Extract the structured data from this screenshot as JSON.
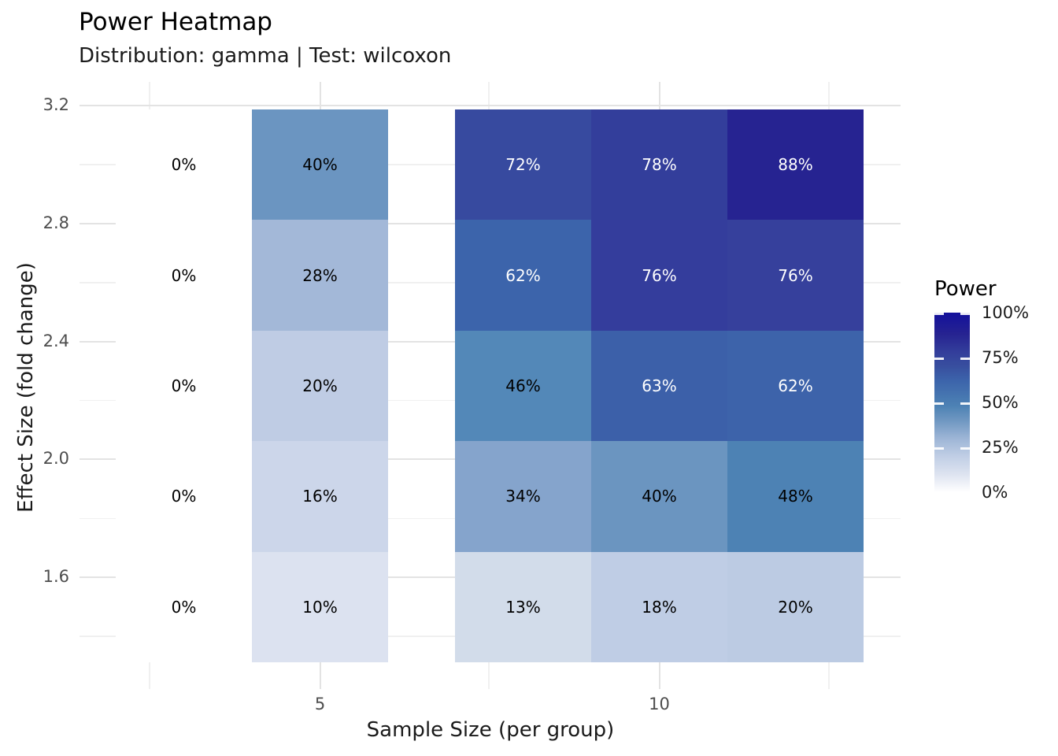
{
  "title": "Power Heatmap",
  "subtitle": "Distribution: gamma | Test: wilcoxon",
  "axes": {
    "x": {
      "title": "Sample Size (per group)",
      "tick_labels": [
        "5",
        "10"
      ]
    },
    "y": {
      "title": "Effect Size (fold change)",
      "tick_labels": [
        "3.2",
        "2.8",
        "2.4",
        "2.0",
        "1.6"
      ]
    }
  },
  "legend": {
    "title": "Power",
    "tick_labels": [
      "100%",
      "75%",
      "50%",
      "25%",
      "0%"
    ],
    "gradient_stops": [
      {
        "pct": 0,
        "color": "#ffffff"
      },
      {
        "pct": 10,
        "color": "#dde3f0"
      },
      {
        "pct": 20,
        "color": "#c0cee5"
      },
      {
        "pct": 30,
        "color": "#9db5d6"
      },
      {
        "pct": 40,
        "color": "#6f97c1"
      },
      {
        "pct": 48,
        "color": "#4d82b4"
      },
      {
        "pct": 62,
        "color": "#3c64ab"
      },
      {
        "pct": 70,
        "color": "#384f9f"
      },
      {
        "pct": 78,
        "color": "#333e9b"
      },
      {
        "pct": 88,
        "color": "#262391"
      },
      {
        "pct": 100,
        "color": "#13109c"
      }
    ]
  },
  "colors": {
    "background": "#ffffff",
    "gridline_major": "#e3e3e3",
    "gridline_minor": "#f0f0f0",
    "tick_label": "#4d4d4d",
    "cell_text_dark": "#000000",
    "cell_text_light": "#ffffff"
  },
  "chart_data": {
    "type": "heatmap",
    "title": "Power Heatmap",
    "subtitle": "Distribution: gamma | Test: wilcoxon",
    "xlabel": "Sample Size (per group)",
    "ylabel": "Effect Size (fold change)",
    "x_tick_labels_shown": [
      5,
      10
    ],
    "y_tick_labels_shown": [
      3.2,
      2.8,
      2.4,
      2.0,
      1.6
    ],
    "sample_sizes": [
      3,
      5,
      8,
      10,
      12
    ],
    "effect_sizes_rows_top_to_bottom": [
      3.0,
      2.625,
      2.25,
      1.875,
      1.5
    ],
    "values_percent_rows_top_to_bottom": [
      [
        0,
        40,
        72,
        78,
        88
      ],
      [
        0,
        28,
        62,
        76,
        76
      ],
      [
        0,
        20,
        46,
        63,
        62
      ],
      [
        0,
        16,
        34,
        40,
        48
      ],
      [
        0,
        10,
        13,
        18,
        20
      ]
    ],
    "cell_labels": [
      [
        "0%",
        "40%",
        "72%",
        "78%",
        "88%"
      ],
      [
        "0%",
        "28%",
        "62%",
        "76%",
        "76%"
      ],
      [
        "0%",
        "20%",
        "46%",
        "63%",
        "62%"
      ],
      [
        "0%",
        "16%",
        "34%",
        "40%",
        "48%"
      ],
      [
        "0%",
        "10%",
        "13%",
        "18%",
        "20%"
      ]
    ],
    "cell_colors": [
      [
        "#ffffff",
        "#6b95c1",
        "#374a9f",
        "#333e9b",
        "#262391"
      ],
      [
        "#ffffff",
        "#a3b8d8",
        "#3c64ab",
        "#343d9c",
        "#36409c"
      ],
      [
        "#ffffff",
        "#bfcce4",
        "#5388b8",
        "#3c60a9",
        "#3d63aa"
      ],
      [
        "#ffffff",
        "#ccd6ea",
        "#85a4cc",
        "#6b95c0",
        "#4d82b4"
      ],
      [
        "#ffffff",
        "#dce2f0",
        "#d2dcea",
        "#bfcde5",
        "#bccbe3"
      ]
    ],
    "legend_title": "Power",
    "legend_range_percent": [
      0,
      100
    ],
    "legend_position": "right",
    "grid": true
  }
}
